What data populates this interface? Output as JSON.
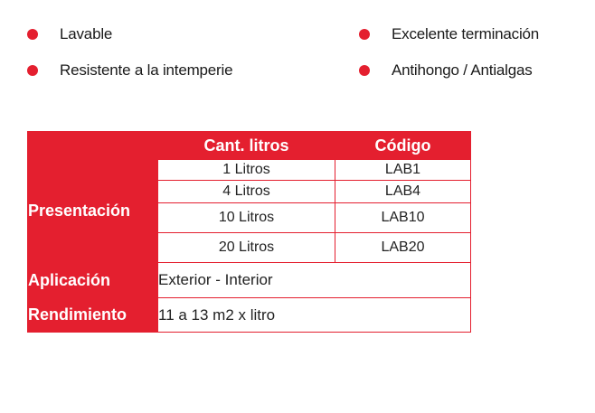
{
  "features": [
    {
      "label": "Lavable"
    },
    {
      "label": "Resistente a la intemperie"
    },
    {
      "label": "Excelente terminación"
    },
    {
      "label": "Antihongo / Antialgas"
    }
  ],
  "table": {
    "headers": {
      "liters": "Cant. litros",
      "code": "Código"
    },
    "presentacion": {
      "label": "Presentación",
      "rows": [
        {
          "liters": "1 Litros",
          "code": "LAB1"
        },
        {
          "liters": "4 Litros",
          "code": "LAB4"
        },
        {
          "liters": "10 Litros",
          "code": "LAB10"
        },
        {
          "liters": "20 Litros",
          "code": "LAB20"
        }
      ]
    },
    "aplicacion": {
      "label": "Aplicación",
      "value": "Exterior - Interior"
    },
    "rendimiento": {
      "label": "Rendimiento",
      "value": "11 a 13 m2 x litro"
    }
  },
  "colors": {
    "accent": "#e41f2f"
  },
  "icons": {
    "bullet": "red-dot-icon"
  }
}
